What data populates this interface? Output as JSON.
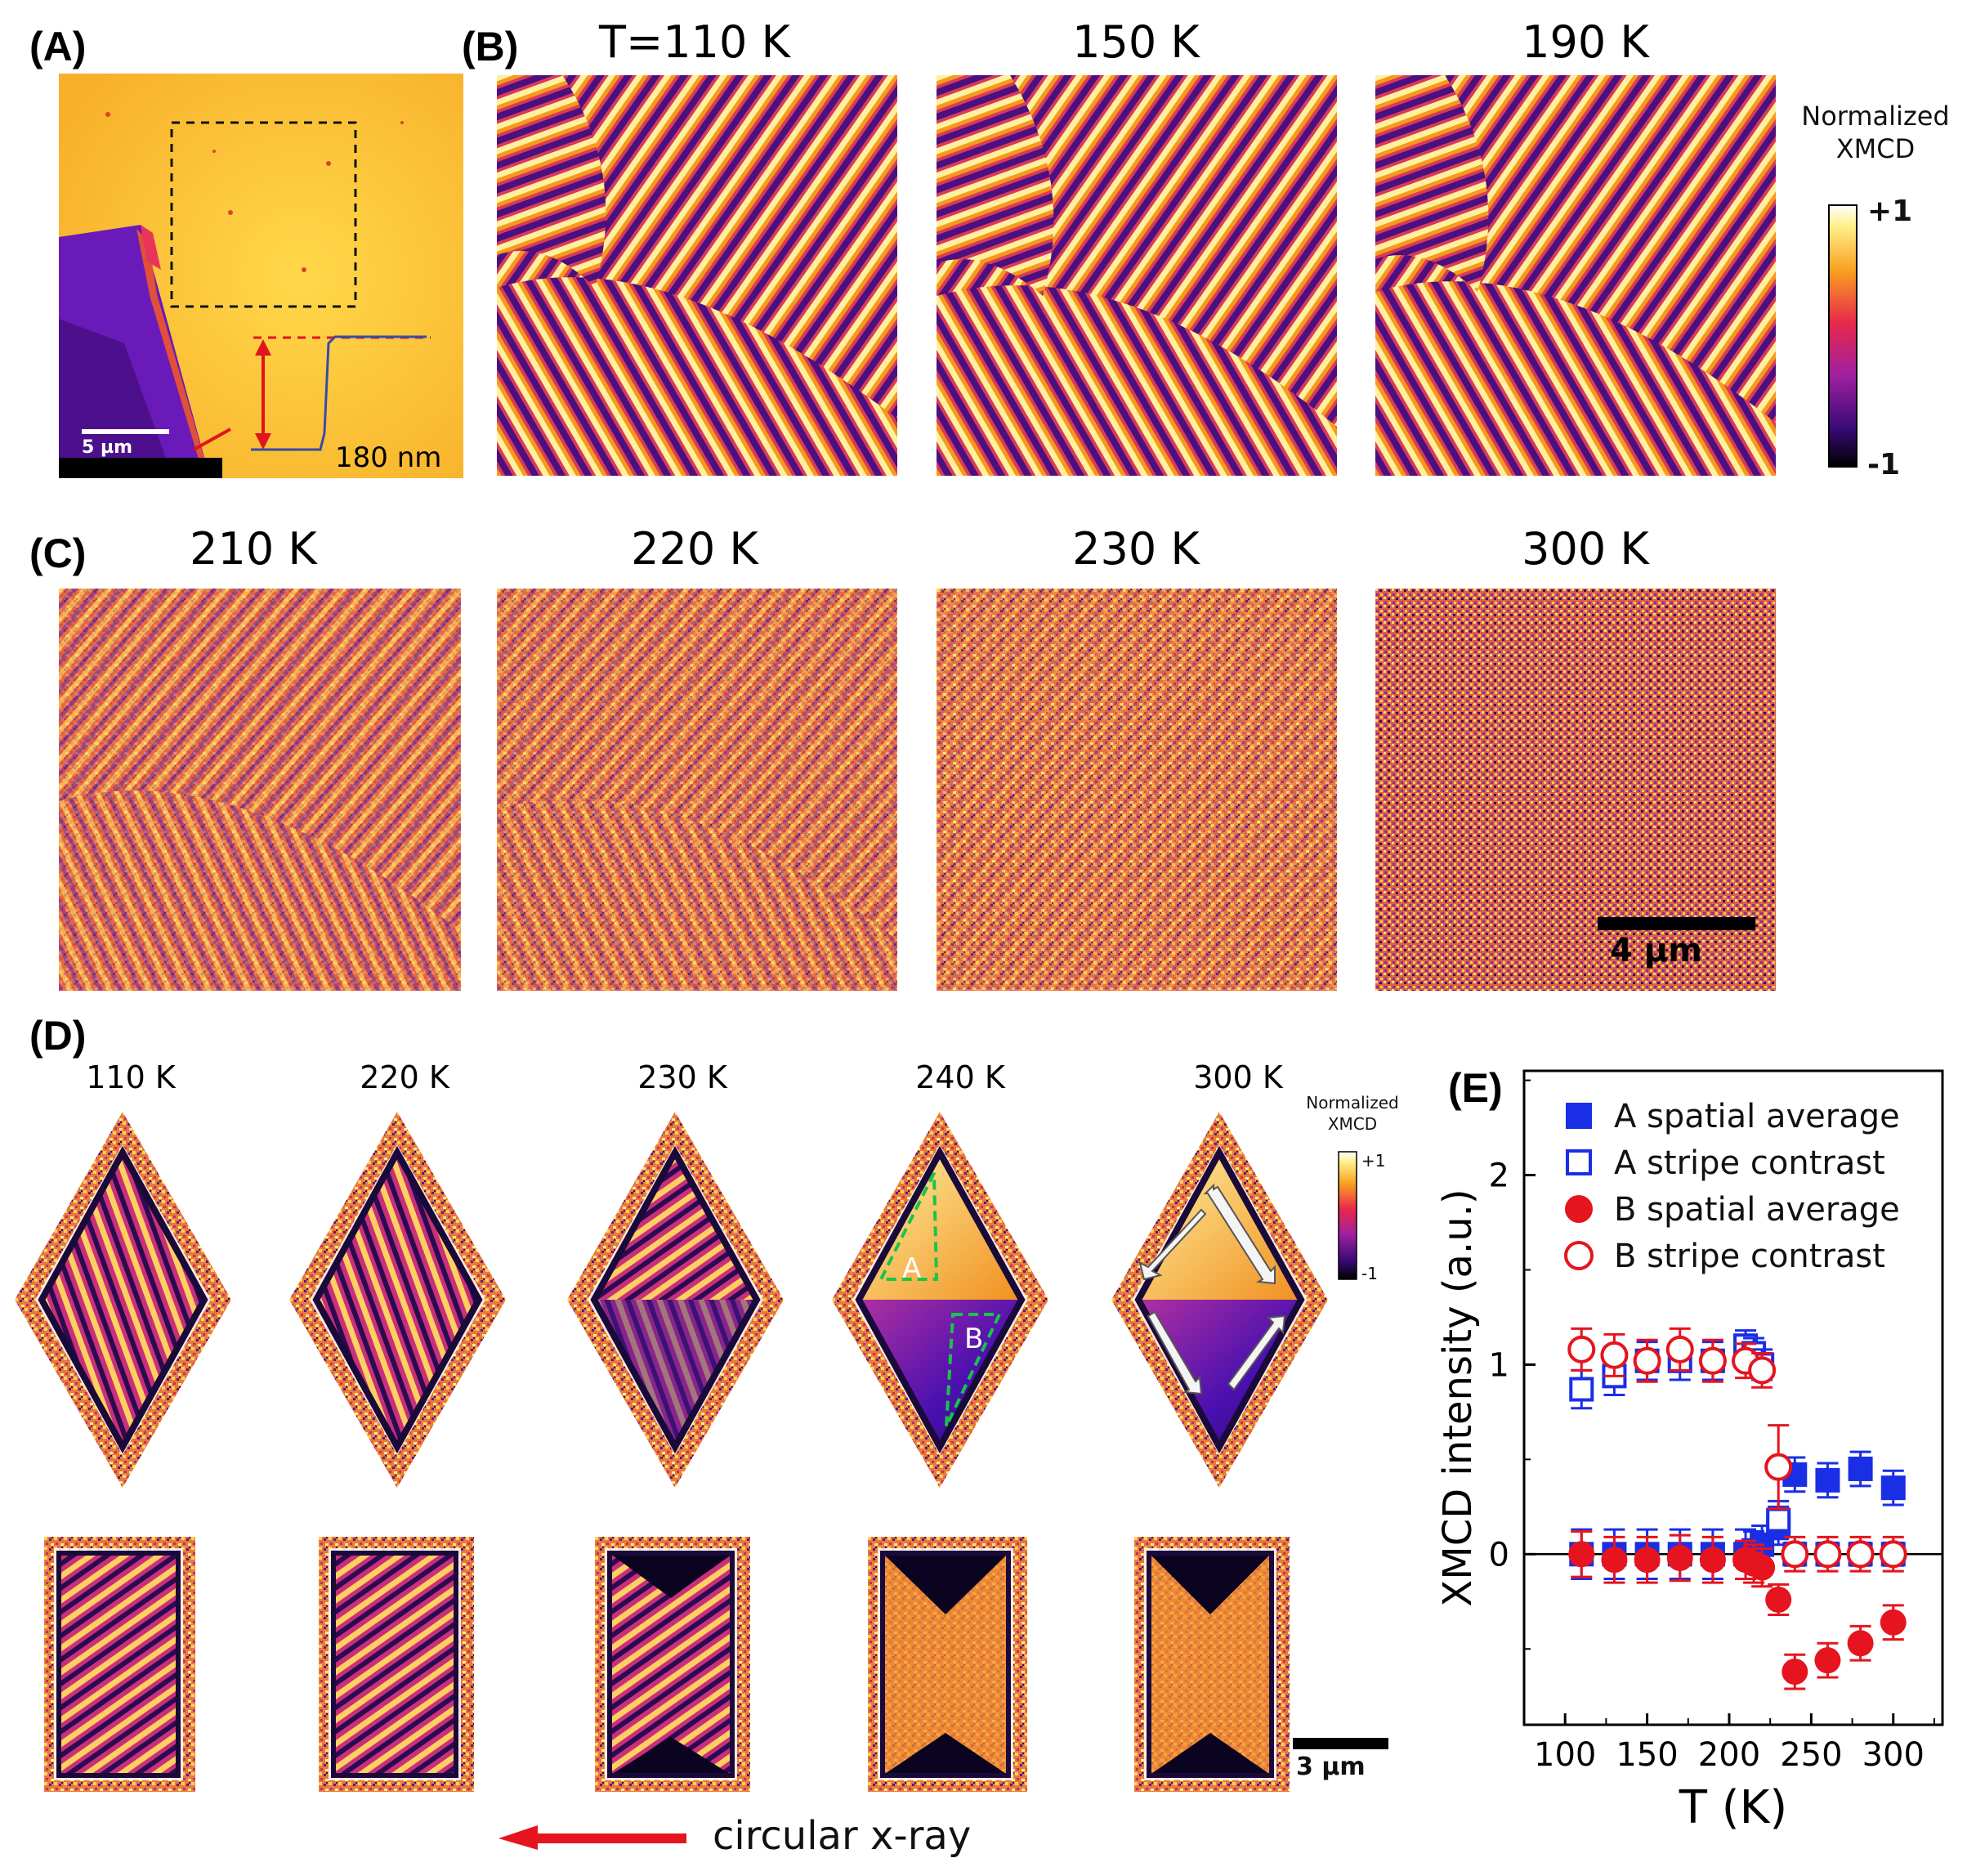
{
  "panels": {
    "a": {
      "letter": "(A)",
      "scalebar": "5 µm",
      "step_label": "180 nm"
    },
    "b": {
      "letter": "(B)",
      "temps": [
        "T=110 K",
        "150 K",
        "190 K"
      ]
    },
    "c": {
      "letter": "(C)",
      "temps": [
        "210 K",
        "220 K",
        "230 K",
        "300 K"
      ],
      "scalebar": "4 µm"
    },
    "d": {
      "letter": "(D)",
      "temps": [
        "110 K",
        "220 K",
        "230 K",
        "240 K",
        "300 K"
      ],
      "label_A": "A",
      "label_B": "B",
      "scalebar": "3 µm",
      "xray_label": "circular x-ray"
    },
    "e": {
      "letter": "(E)"
    }
  },
  "colorbar_top": {
    "title_line1": "Normalized",
    "title_line2": "XMCD",
    "max": "+1",
    "min": "-1"
  },
  "colorbar_d": {
    "title_line1": "Normalized",
    "title_line2": "XMCD",
    "max": "+1",
    "min": "-1"
  },
  "colors": {
    "stripe_dark": "#1a0a3a",
    "stripe_purple": "#7a1fa0",
    "stripe_red": "#e0304a",
    "stripe_orange": "#f59a1a",
    "stripe_bright": "#fff2a0",
    "series_A": "#1a2ee6",
    "series_B": "#e6141e",
    "dashed_green": "#19c44a"
  },
  "chart_data": {
    "type": "scatter",
    "xlabel": "T (K)",
    "ylabel": "XMCD intensity (a.u.)",
    "xlim": [
      75,
      330
    ],
    "ylim": [
      -0.9,
      2.55
    ],
    "xticks": [
      100,
      150,
      200,
      250,
      300
    ],
    "yticks": [
      0,
      1,
      2
    ],
    "legend_position": "top-right",
    "series": [
      {
        "name": "A spatial average",
        "marker": "filled-square",
        "color": "#1a2ee6",
        "x": [
          110,
          130,
          150,
          170,
          190,
          210,
          215,
          220,
          230,
          240,
          260,
          280,
          300
        ],
        "y": [
          0.0,
          0.0,
          0.0,
          0.0,
          0.0,
          0.0,
          0.02,
          0.05,
          0.15,
          0.42,
          0.39,
          0.45,
          0.35
        ],
        "err": [
          0.13,
          0.13,
          0.13,
          0.13,
          0.13,
          0.13,
          0.1,
          0.1,
          0.1,
          0.09,
          0.09,
          0.09,
          0.09
        ]
      },
      {
        "name": "A stripe contrast",
        "marker": "open-square",
        "color": "#1a2ee6",
        "x": [
          110,
          130,
          150,
          170,
          190,
          210,
          215,
          220,
          230,
          240,
          260,
          280,
          300
        ],
        "y": [
          0.87,
          0.94,
          1.02,
          1.02,
          1.02,
          1.1,
          1.06,
          1.0,
          0.18,
          0.0,
          0.0,
          0.0,
          0.0
        ],
        "err": [
          0.1,
          0.1,
          0.1,
          0.1,
          0.1,
          0.08,
          0.08,
          0.08,
          0.1,
          0.06,
          0.06,
          0.06,
          0.06
        ]
      },
      {
        "name": "B spatial average",
        "marker": "filled-circle",
        "color": "#e6141e",
        "x": [
          110,
          130,
          150,
          170,
          190,
          210,
          215,
          220,
          230,
          240,
          260,
          280,
          300
        ],
        "y": [
          0.0,
          -0.03,
          -0.03,
          -0.02,
          -0.03,
          -0.03,
          -0.05,
          -0.07,
          -0.24,
          -0.62,
          -0.56,
          -0.47,
          -0.36
        ],
        "err": [
          0.12,
          0.12,
          0.12,
          0.12,
          0.12,
          0.1,
          0.1,
          0.1,
          0.08,
          0.09,
          0.09,
          0.09,
          0.09
        ]
      },
      {
        "name": "B stripe contrast",
        "marker": "open-circle",
        "color": "#e6141e",
        "x": [
          110,
          130,
          150,
          170,
          190,
          210,
          220,
          230,
          240,
          260,
          280,
          300
        ],
        "y": [
          1.08,
          1.05,
          1.02,
          1.08,
          1.02,
          1.02,
          0.97,
          0.46,
          0.0,
          0.0,
          0.0,
          0.0
        ],
        "err": [
          0.11,
          0.11,
          0.11,
          0.11,
          0.11,
          0.09,
          0.09,
          0.22,
          0.09,
          0.09,
          0.09,
          0.09
        ]
      }
    ]
  }
}
